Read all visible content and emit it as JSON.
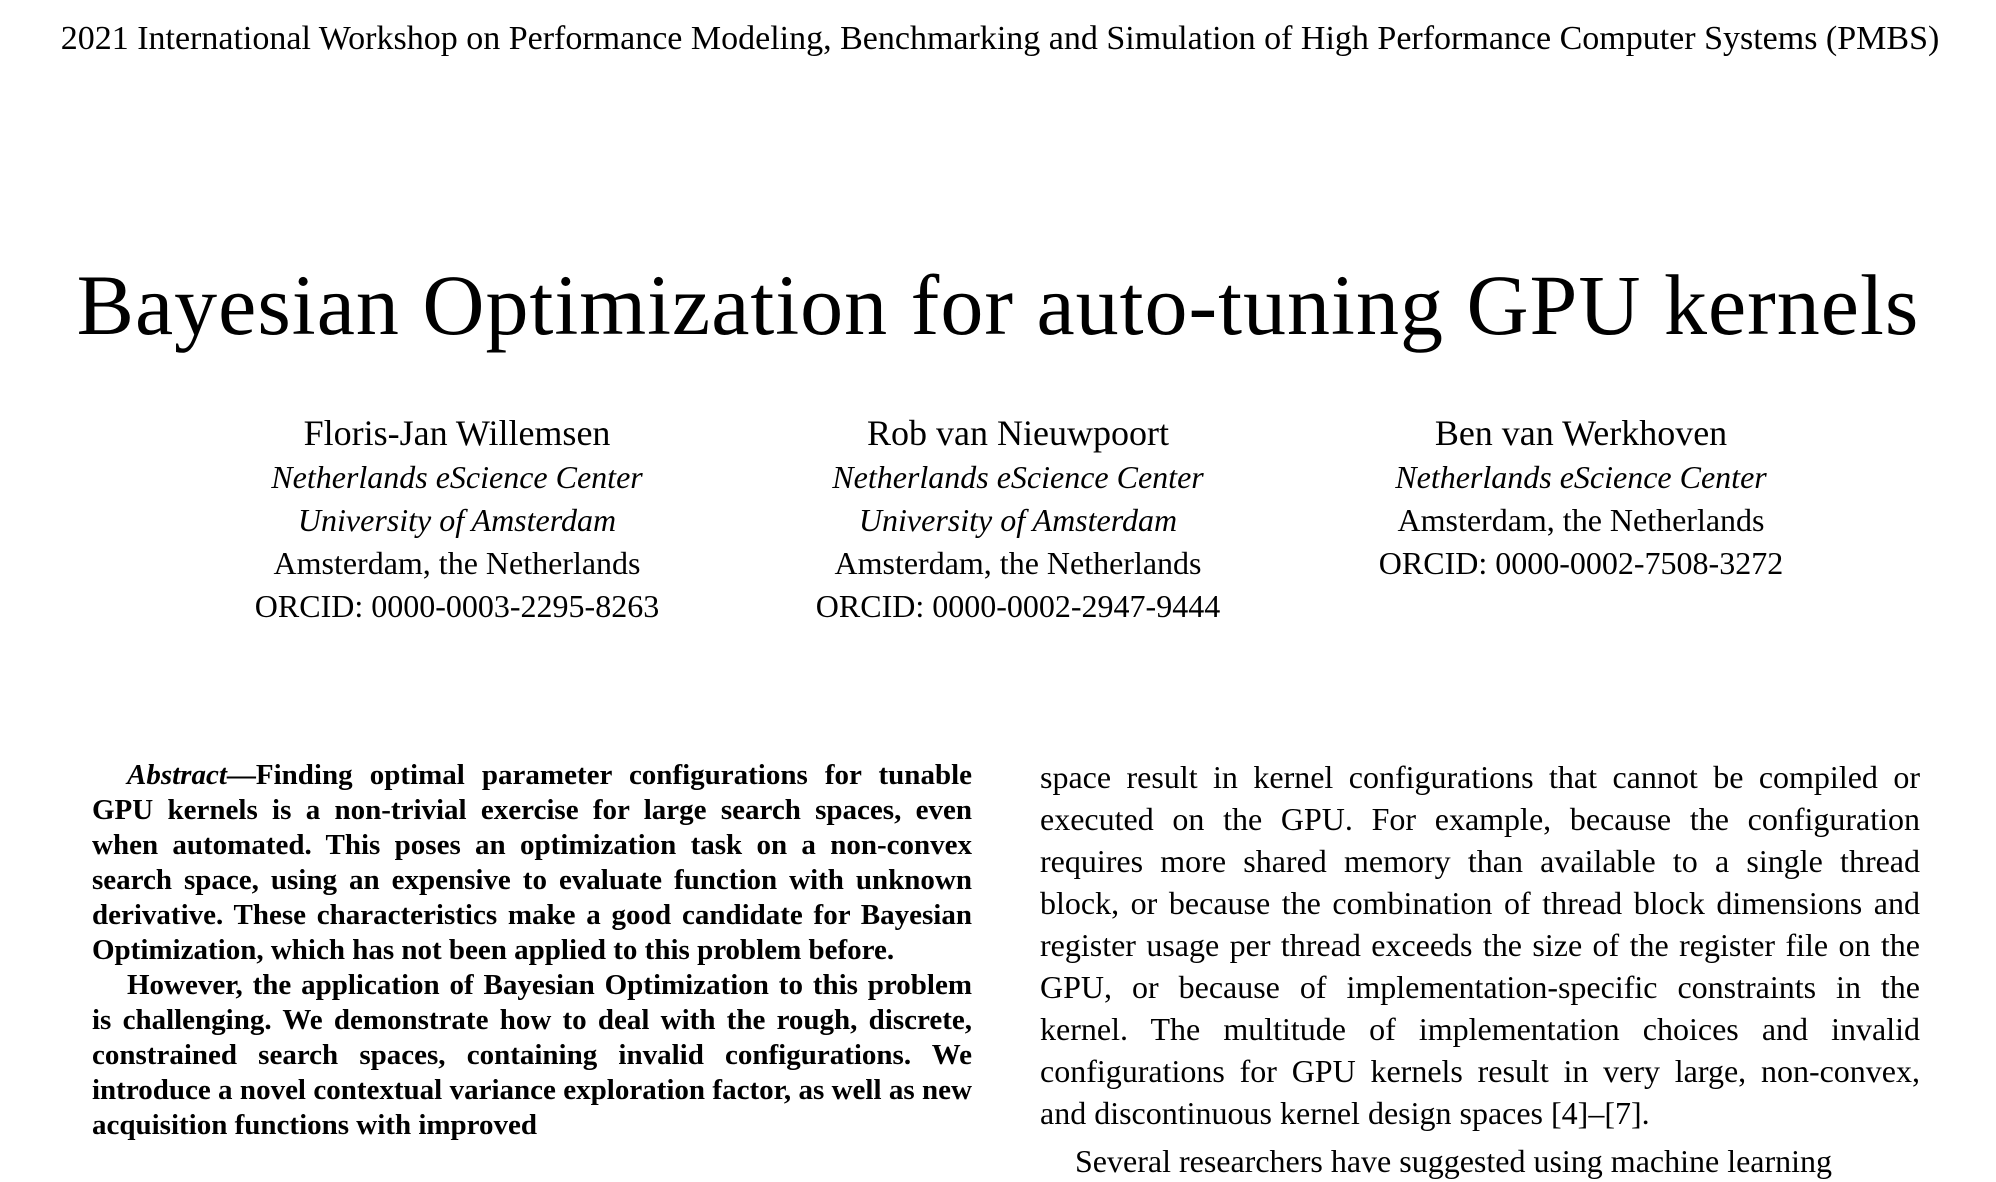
{
  "header": {
    "workshop": "2021 International Workshop on Performance Modeling, Benchmarking and Simulation of High Performance Computer Systems (PMBS)"
  },
  "paper": {
    "title": "Bayesian Optimization for auto-tuning GPU kernels"
  },
  "authors": [
    {
      "name": "Floris-Jan Willemsen",
      "affil1": "Netherlands eScience Center",
      "affil2": "University of Amsterdam",
      "location": "Amsterdam, the Netherlands",
      "orcid": "ORCID: 0000-0003-2295-8263"
    },
    {
      "name": "Rob van Nieuwpoort",
      "affil1": "Netherlands eScience Center",
      "affil2": "University of Amsterdam",
      "location": "Amsterdam, the Netherlands",
      "orcid": "ORCID: 0000-0002-2947-9444"
    },
    {
      "name": "Ben van Werkhoven",
      "affil1": "Netherlands eScience Center",
      "location": "Amsterdam, the Netherlands",
      "orcid": "ORCID: 0000-0002-7508-3272"
    }
  ],
  "abstract": {
    "label": "Abstract",
    "dash": "—",
    "p1": "Finding optimal parameter configurations for tunable GPU kernels is a non-trivial exercise for large search spaces, even when automated. This poses an optimization task on a non-convex search space, using an expensive to evaluate function with unknown derivative. These characteristics make a good candidate for Bayesian Optimization, which has not been applied to this problem before.",
    "p2": "However, the application of Bayesian Optimization to this problem is challenging. We demonstrate how to deal with the rough, discrete, constrained search spaces, containing invalid configurations. We introduce a novel contextual variance exploration factor, as well as new acquisition functions with improved"
  },
  "body_right": {
    "p1": "space result in kernel configurations that cannot be compiled or executed on the GPU. For example, because the configuration requires more shared memory than available to a single thread block, or because the combination of thread block dimensions and register usage per thread exceeds the size of the register file on the GPU, or because of implementation-specific constraints in the kernel. The multitude of implementation choices and invalid configurations for GPU kernels result in very large, non-convex, and discontinuous kernel design spaces [4]–[7].",
    "p2": "Several researchers have suggested using machine learning"
  }
}
